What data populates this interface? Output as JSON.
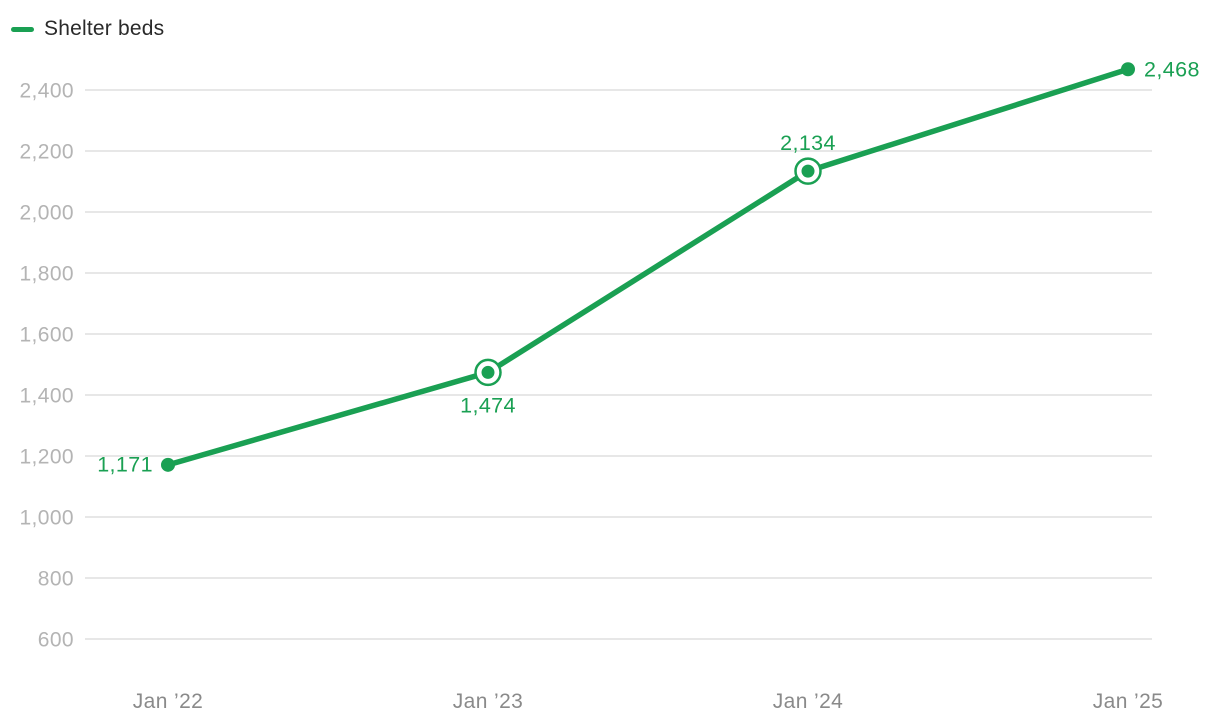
{
  "colors": {
    "series": "#1aa053",
    "grid": "#e7e7e7",
    "y_tick_text": "#b4b4b4",
    "x_tick_text": "#8a8a8a",
    "legend_text": "#2a2a2a",
    "marker_ring_fill": "#ffffff",
    "background": "#ffffff"
  },
  "legend": {
    "label": "Shelter beds",
    "position": "top-left"
  },
  "chart_data": {
    "type": "line",
    "title": "",
    "xlabel": "",
    "ylabel": "",
    "categories": [
      "Jan ’22",
      "Jan ’23",
      "Jan ’24",
      "Jan ’25"
    ],
    "series": [
      {
        "name": "Shelter beds",
        "values": [
          1171,
          1474,
          2134,
          2468
        ]
      }
    ],
    "point_labels": [
      "1,171",
      "1,474",
      "2,134",
      "2,468"
    ],
    "point_label_positions": [
      "left",
      "below",
      "above",
      "right"
    ],
    "marker_styles": [
      "dot",
      "ring",
      "ring",
      "dot"
    ],
    "y_tick_values": [
      600,
      800,
      1000,
      1200,
      1400,
      1600,
      1800,
      2000,
      2200,
      2400
    ],
    "y_tick_labels": [
      "600",
      "800",
      "1,000",
      "1,200",
      "1,400",
      "1,600",
      "1,800",
      "2,000",
      "2,200",
      "2,400"
    ],
    "ylim": [
      600,
      2400
    ],
    "grid": "horizontal",
    "legend_position": "top-left"
  }
}
